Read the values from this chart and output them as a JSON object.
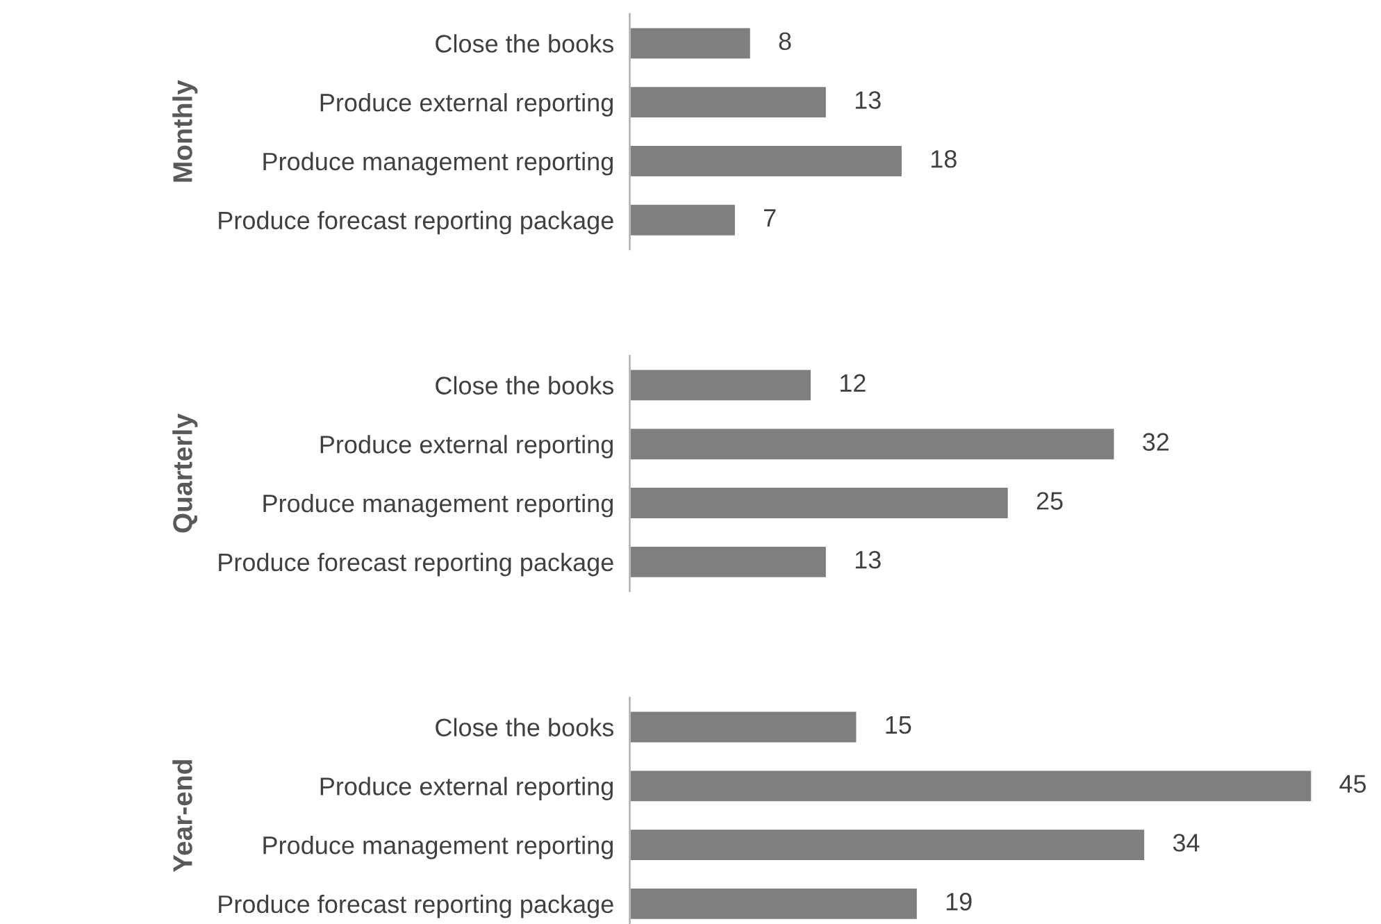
{
  "chart_data": [
    {
      "type": "bar",
      "orientation": "horizontal",
      "ylabel": "Monthly",
      "categories": [
        "Close the books",
        "Produce external reporting",
        "Produce management reporting",
        "Produce forecast reporting package"
      ],
      "values": [
        8,
        13,
        18,
        7
      ],
      "color": "#7f7f7f",
      "data_labels": true,
      "tick_labels": "y",
      "grid": false,
      "legend": false
    },
    {
      "type": "bar",
      "orientation": "horizontal",
      "ylabel": "Quarterly",
      "categories": [
        "Close the books",
        "Produce external reporting",
        "Produce management reporting",
        "Produce forecast reporting package"
      ],
      "values": [
        12,
        32,
        25,
        13
      ],
      "color": "#7f7f7f",
      "data_labels": true,
      "tick_labels": "y",
      "grid": false,
      "legend": false
    },
    {
      "type": "bar",
      "orientation": "horizontal",
      "ylabel": "Year-end",
      "categories": [
        "Close the books",
        "Produce external reporting",
        "Produce management reporting",
        "Produce forecast reporting package"
      ],
      "values": [
        15,
        45,
        34,
        19
      ],
      "color": "#7f7f7f",
      "data_labels": true,
      "tick_labels": "y",
      "grid": false,
      "legend": false
    }
  ]
}
